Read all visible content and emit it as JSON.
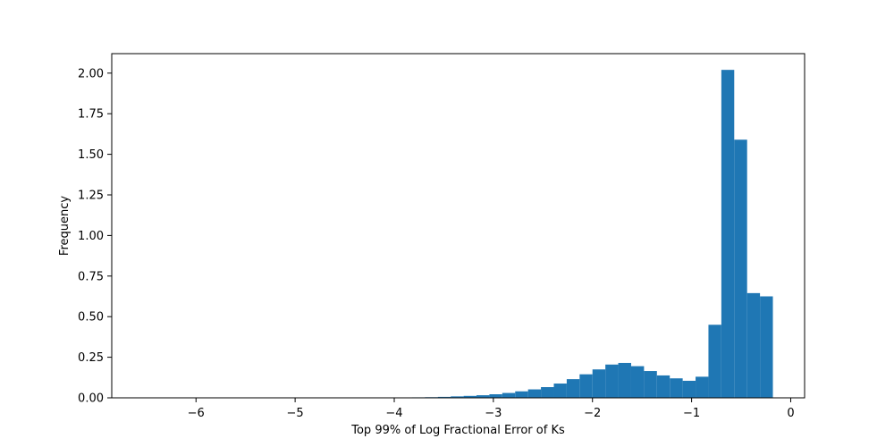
{
  "chart_data": {
    "type": "bar",
    "title": "",
    "xlabel": "Top 99% of Log Fractional Error of Ks",
    "ylabel": "Frequency",
    "xlim": [
      -6.85,
      0.14
    ],
    "ylim": [
      0,
      2.12
    ],
    "xticks": [
      -6,
      -5,
      -4,
      -3,
      -2,
      -1,
      0
    ],
    "xtick_labels": [
      "−6",
      "−5",
      "−4",
      "−3",
      "−2",
      "−1",
      "0"
    ],
    "yticks": [
      0,
      0.25,
      0.5,
      0.75,
      1.0,
      1.25,
      1.5,
      1.75,
      2.0
    ],
    "ytick_labels": [
      "0.00",
      "0.25",
      "0.50",
      "0.75",
      "1.00",
      "1.25",
      "1.50",
      "1.75",
      "2.00"
    ],
    "bin_width": 0.13,
    "bin_left_edges": [
      -3.95,
      -3.82,
      -3.69,
      -3.56,
      -3.43,
      -3.3,
      -3.17,
      -3.04,
      -2.91,
      -2.78,
      -2.65,
      -2.52,
      -2.39,
      -2.26,
      -2.13,
      -2.0,
      -1.87,
      -1.74,
      -1.61,
      -1.48,
      -1.35,
      -1.22,
      -1.09,
      -0.96,
      -0.83,
      -0.7,
      -0.57,
      -0.44,
      -0.31
    ],
    "values": [
      0.002,
      0.003,
      0.004,
      0.006,
      0.009,
      0.012,
      0.016,
      0.022,
      0.03,
      0.04,
      0.052,
      0.066,
      0.088,
      0.115,
      0.145,
      0.175,
      0.205,
      0.215,
      0.195,
      0.165,
      0.138,
      0.12,
      0.105,
      0.13,
      0.45,
      2.02,
      1.59,
      0.645,
      0.49
    ],
    "extra_bar": {
      "left_edge": -0.31,
      "value": 0.625
    },
    "bar_color": "#1f77b4",
    "grid": false,
    "legend": false
  }
}
